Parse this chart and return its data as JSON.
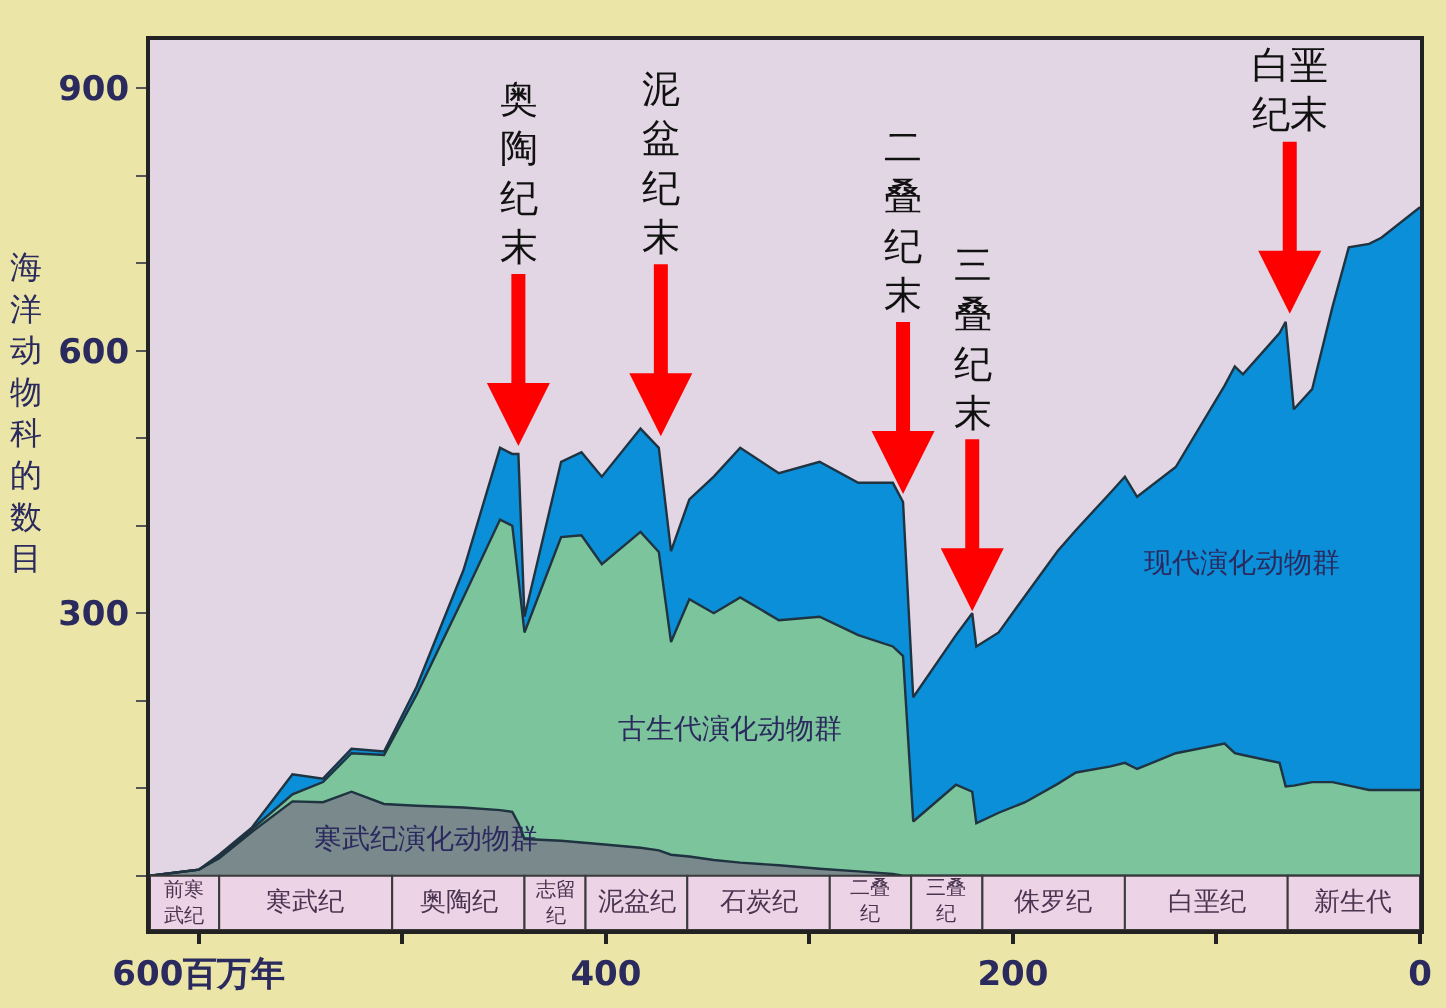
{
  "chart_data": {
    "type": "area",
    "stacked": true,
    "ylabel": "海洋动物科的数目",
    "x": [
      624,
      600,
      590,
      574,
      554,
      539,
      525,
      509,
      493,
      470,
      452,
      446,
      443,
      440,
      422,
      412,
      402,
      383,
      374,
      368,
      359,
      347,
      334,
      315,
      295,
      276,
      259,
      254,
      249,
      228,
      220,
      218,
      207,
      194,
      178,
      169,
      152,
      145,
      139,
      120,
      96,
      91,
      87,
      69,
      66,
      62,
      53,
      43,
      35,
      25,
      19,
      0
    ],
    "series": [
      {
        "name": "寒武纪演化动物群",
        "color": "#7a898c",
        "values": [
          0,
          7,
          20,
          50,
          85,
          84,
          96,
          82,
          80,
          78,
          75,
          73,
          60,
          42,
          40,
          38,
          36,
          32,
          29,
          24,
          22,
          18,
          15,
          12,
          8,
          5,
          2,
          0,
          0,
          0,
          0,
          0,
          0,
          0,
          0,
          0,
          0,
          0,
          0,
          0,
          0,
          0,
          0,
          0,
          0,
          0,
          0,
          0,
          0,
          0,
          0,
          0
        ]
      },
      {
        "name": "古生代演化动物群",
        "color": "#7cc59c",
        "values": [
          0,
          0,
          2,
          3,
          8,
          23,
          44,
          56,
          127,
          240,
          332,
          327,
          280,
          236,
          347,
          351,
          320,
          361,
          341,
          243,
          294,
          282,
          303,
          280,
          288,
          270,
          260,
          251,
          62,
          104,
          96,
          60,
          72,
          84,
          105,
          118,
          125,
          129,
          122,
          140,
          151,
          140,
          138,
          129,
          102,
          103,
          107,
          107,
          103,
          98,
          98,
          98
        ]
      },
      {
        "name": "现代演化动物群",
        "color": "#0b8fd8",
        "values": [
          0,
          0,
          2,
          2,
          23,
          4,
          5,
          4,
          9,
          31,
          82,
          82,
          142,
          18,
          86,
          95,
          100,
          118,
          119,
          104,
          114,
          156,
          171,
          168,
          177,
          174,
          187,
          176,
          142,
          171,
          204,
          202,
          206,
          236,
          266,
          277,
          313,
          327,
          311,
          327,
          409,
          442,
          435,
          491,
          531,
          430,
          449,
          543,
          615,
          624,
          631,
          666
        ]
      }
    ],
    "xlim": [
      624,
      0
    ],
    "xticks": [
      {
        "value": 600,
        "label": "600百万年"
      },
      {
        "value": 500,
        "label": null
      },
      400,
      {
        "value": 300,
        "label": null
      },
      200,
      {
        "value": 100,
        "label": null
      },
      0
    ],
    "ylim": [
      -62,
      955
    ],
    "yticks": [
      {
        "value": 0,
        "label": null
      },
      {
        "value": 100,
        "label": null
      },
      {
        "value": 200,
        "label": null
      },
      300,
      {
        "value": 400,
        "label": null
      },
      {
        "value": 500,
        "label": null
      },
      600,
      {
        "value": 700,
        "label": null
      },
      {
        "value": 800,
        "label": null
      },
      900
    ],
    "annotations": [
      {
        "text": "奥陶纪末",
        "x": 443,
        "y": 482
      },
      {
        "text": "泥盆纪末",
        "x": 373,
        "y": 493
      },
      {
        "text": "二叠纪末",
        "x": 254,
        "y": 427
      },
      {
        "text": "三叠纪末",
        "x": 220,
        "y": 293
      },
      {
        "text": "白垩纪末",
        "x": 64,
        "y": 633
      }
    ],
    "bands": [
      {
        "axis": "x",
        "from": 624,
        "to": 590,
        "label": "前寒武纪",
        "color": "#ecd3e6"
      },
      {
        "axis": "x",
        "from": 590,
        "to": 505,
        "label": "寒武纪",
        "color": "#ecd3e6"
      },
      {
        "axis": "x",
        "from": 505,
        "to": 440,
        "label": "奥陶纪",
        "color": "#ecd3e6"
      },
      {
        "axis": "x",
        "from": 440,
        "to": 410,
        "label": "志留纪",
        "color": "#ecd3e6"
      },
      {
        "axis": "x",
        "from": 410,
        "to": 360,
        "label": "泥盆纪",
        "color": "#ecd3e6"
      },
      {
        "axis": "x",
        "from": 360,
        "to": 290,
        "label": "石炭纪",
        "color": "#ecd3e6"
      },
      {
        "axis": "x",
        "from": 290,
        "to": 250,
        "label": "二叠纪",
        "color": "#ecd3e6"
      },
      {
        "axis": "x",
        "from": 250,
        "to": 215,
        "label": "三叠纪",
        "color": "#ecd3e6"
      },
      {
        "axis": "x",
        "from": 215,
        "to": 145,
        "label": "侏罗纪",
        "color": "#ecd3e6"
      },
      {
        "axis": "x",
        "from": 145,
        "to": 65,
        "label": "白垩纪",
        "color": "#ecd3e6"
      },
      {
        "axis": "x",
        "from": 65,
        "to": 0,
        "label": "新生代",
        "color": "#ecd3e6"
      }
    ],
    "grid": false,
    "legend": false
  }
}
